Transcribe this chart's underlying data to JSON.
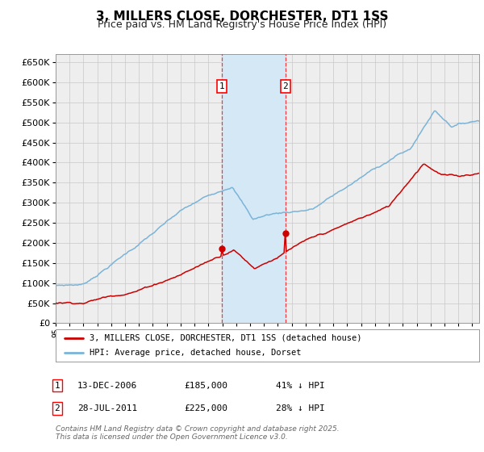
{
  "title": "3, MILLERS CLOSE, DORCHESTER, DT1 1SS",
  "subtitle": "Price paid vs. HM Land Registry's House Price Index (HPI)",
  "title_fontsize": 11,
  "subtitle_fontsize": 9,
  "ylim": [
    0,
    670000
  ],
  "ytick_step": 50000,
  "hpi_color": "#7ab4d8",
  "price_color": "#cc0000",
  "grid_color": "#c8c8c8",
  "bg_color": "#ffffff",
  "plot_bg_color": "#eeeeee",
  "sale1_date_num": 2006.95,
  "sale2_date_num": 2011.55,
  "sale1_price": 185000,
  "sale2_price": 225000,
  "shade_color": "#d5e8f5",
  "legend_label1": "3, MILLERS CLOSE, DORCHESTER, DT1 1SS (detached house)",
  "legend_label2": "HPI: Average price, detached house, Dorset",
  "footer": "Contains HM Land Registry data © Crown copyright and database right 2025.\nThis data is licensed under the Open Government Licence v3.0.",
  "xmin": 1995,
  "xmax": 2025.5
}
